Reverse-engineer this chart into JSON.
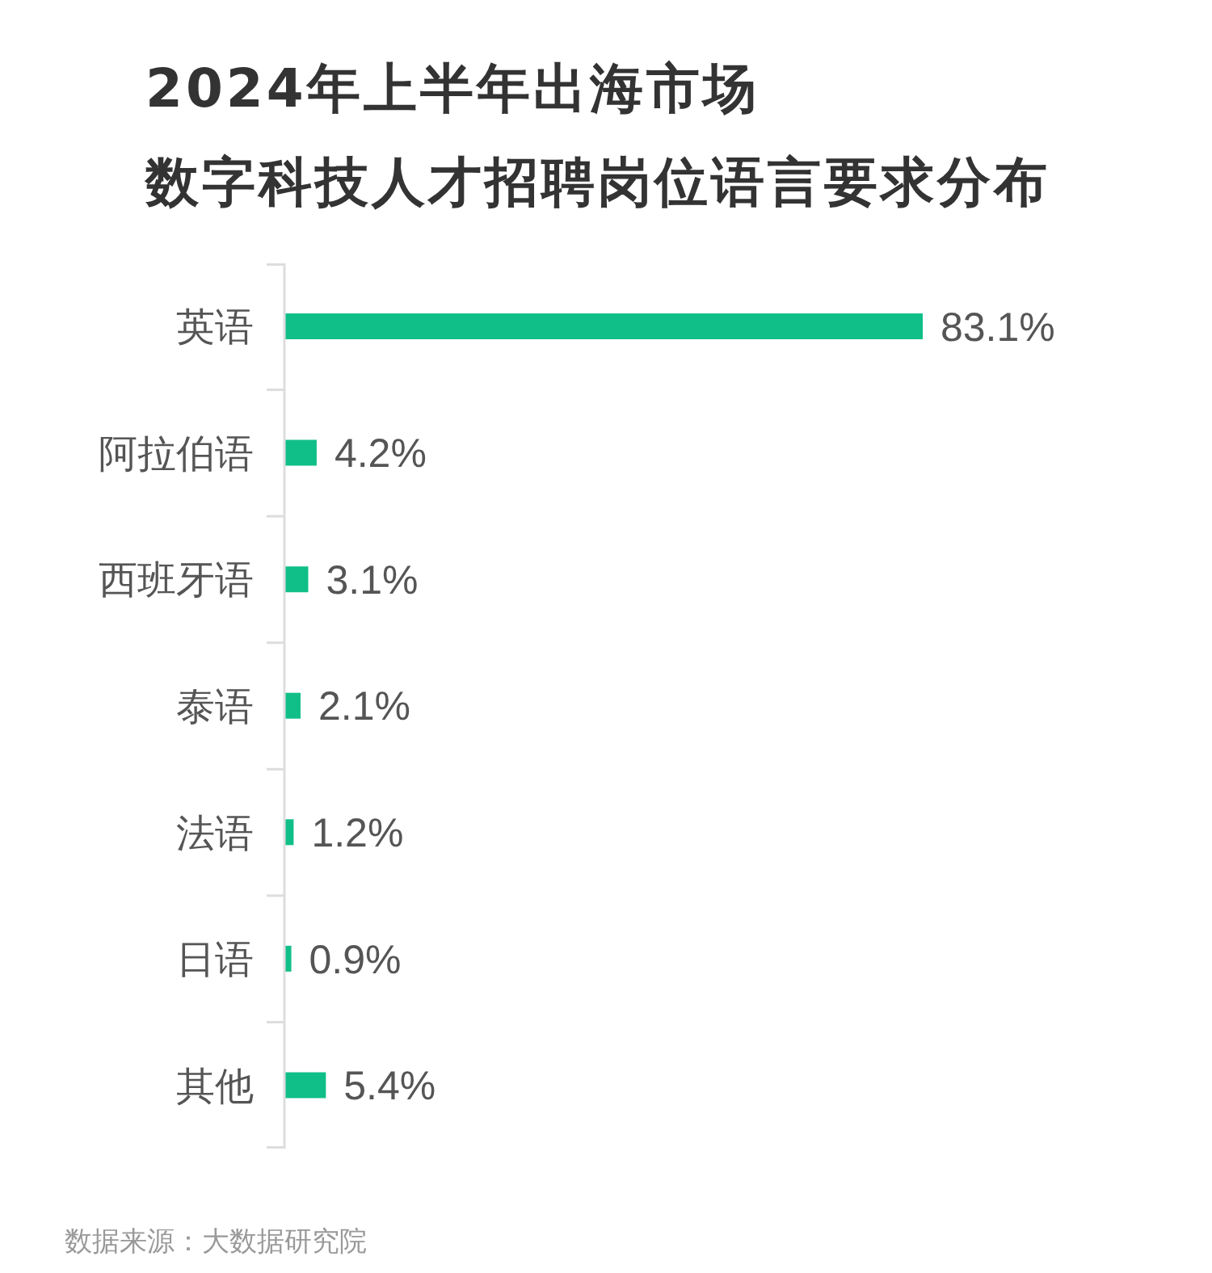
{
  "chart_data": {
    "type": "bar",
    "orientation": "horizontal",
    "title": "2024年上半年出海市场",
    "subtitle": "数字科技人才招聘岗位语言要求分布",
    "categories": [
      "英语",
      "阿拉伯语",
      "西班牙语",
      "泰语",
      "法语",
      "日语",
      "其他"
    ],
    "values": [
      83.1,
      4.2,
      3.1,
      2.1,
      1.2,
      0.9,
      5.4
    ],
    "value_labels": [
      "83.1%",
      "4.2%",
      "3.1%",
      "2.1%",
      "1.2%",
      "0.9%",
      "5.4%"
    ],
    "color": "#10bf88",
    "annotations": [
      "数据来源：大数据研究院"
    ]
  }
}
